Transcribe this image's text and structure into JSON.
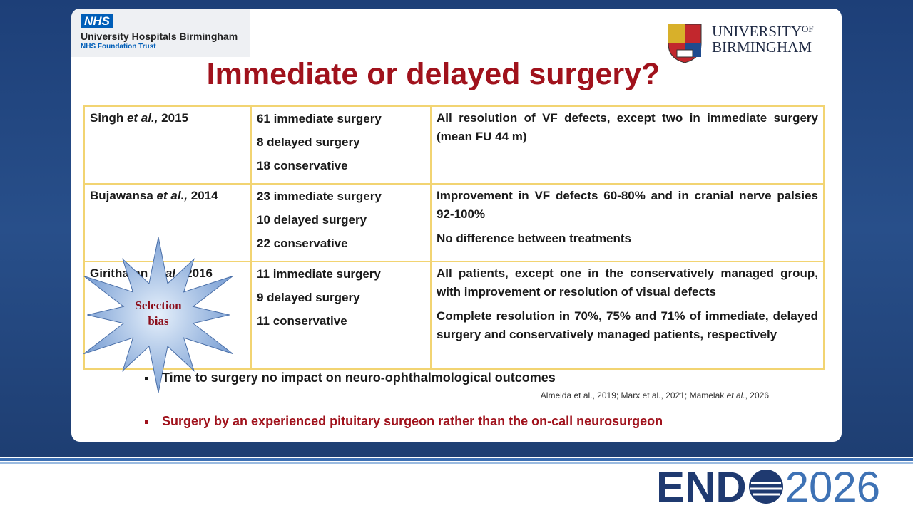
{
  "header": {
    "nhs_badge": "NHS",
    "nhs_org": "University Hospitals Birmingham",
    "nhs_trust": "NHS Foundation Trust",
    "uob_line1": "UNIVERSITY",
    "uob_of": "OF",
    "uob_line2": "BIRMINGHAM"
  },
  "title": "Immediate or delayed surgery?",
  "table": {
    "rows": [
      {
        "study": {
          "name": "Singh",
          "etal": "et al.,",
          "year": "2015"
        },
        "arms": [
          "61 immediate surgery",
          "8 delayed surgery",
          "18 conservative"
        ],
        "findings": [
          "All resolution of VF defects, except two in immediate surgery (mean FU 44 m)"
        ]
      },
      {
        "study": {
          "name": "Bujawansa",
          "etal": "et al.,",
          "year": "2014"
        },
        "arms": [
          "23 immediate surgery",
          "10 delayed surgery",
          "22 conservative"
        ],
        "findings": [
          "Improvement in VF defects 60-80% and in cranial nerve palsies 92-100%",
          "No difference between treatments"
        ]
      },
      {
        "study": {
          "name": "Giritharan",
          "etal": "et al.,",
          "year": "2016"
        },
        "arms": [
          "11 immediate surgery",
          "9 delayed surgery",
          "11 conservative"
        ],
        "findings": [
          "All patients, except one in the conservatively managed group, with improvement or resolution of visual defects",
          "Complete resolution in 70%, 75% and 71% of immediate, delayed surgery and conservatively managed patients, respectively"
        ]
      }
    ]
  },
  "callout": [
    "Selection",
    "bias"
  ],
  "bullets": [
    {
      "text": "Time to surgery no impact on neuro-ophthalmological outcomes",
      "references": {
        "plain": "Almeida et al., 2019;  Marx et al., 2021; Mamelak",
        "etal": "et al.",
        "year": ", 2026"
      }
    },
    {
      "text": "Surgery by an experienced pituitary surgeon rather than the on-call neurosurgeon"
    }
  ],
  "footer": {
    "brand_left": "END",
    "brand_right": "2026"
  }
}
